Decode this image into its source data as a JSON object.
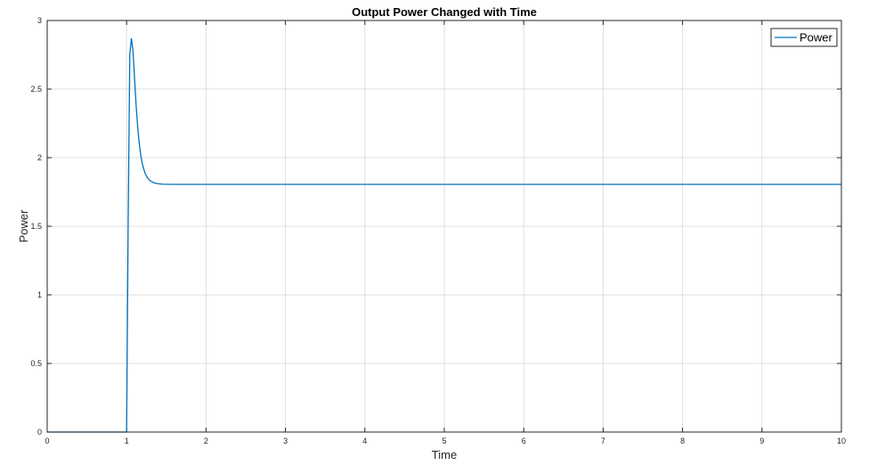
{
  "chart_data": {
    "type": "line",
    "title": "Output Power Changed with Time",
    "xlabel": "Time",
    "ylabel": "Power",
    "xlim": [
      0,
      10
    ],
    "ylim": [
      0,
      3
    ],
    "xticks": [
      0,
      1,
      2,
      3,
      4,
      5,
      6,
      7,
      8,
      9,
      10
    ],
    "yticks": [
      0,
      0.5,
      1,
      1.5,
      2,
      2.5,
      3
    ],
    "xtick_labels": [
      "0",
      "1",
      "2",
      "3",
      "4",
      "5",
      "6",
      "7",
      "8",
      "9",
      "10"
    ],
    "ytick_labels": [
      "0",
      "0.5",
      "1",
      "1.5",
      "2",
      "2.5",
      "3"
    ],
    "grid": true,
    "legend_position": "top-right",
    "series": [
      {
        "name": "Power",
        "color": "#0072BD",
        "x": [
          0,
          1.0,
          1.02,
          1.04,
          1.06,
          1.08,
          1.1,
          1.12,
          1.14,
          1.16,
          1.18,
          1.2,
          1.23,
          1.26,
          1.3,
          1.35,
          1.4,
          1.45,
          1.5,
          1.6,
          1.8,
          2.0,
          3.0,
          4.0,
          5.0,
          6.0,
          7.0,
          8.0,
          9.0,
          10.0
        ],
        "y": [
          0,
          0,
          1.55,
          2.75,
          2.87,
          2.78,
          2.58,
          2.38,
          2.22,
          2.1,
          2.01,
          1.95,
          1.89,
          1.855,
          1.83,
          1.815,
          1.81,
          1.807,
          1.806,
          1.805,
          1.805,
          1.805,
          1.805,
          1.805,
          1.805,
          1.805,
          1.805,
          1.805,
          1.805,
          1.805
        ]
      }
    ]
  }
}
